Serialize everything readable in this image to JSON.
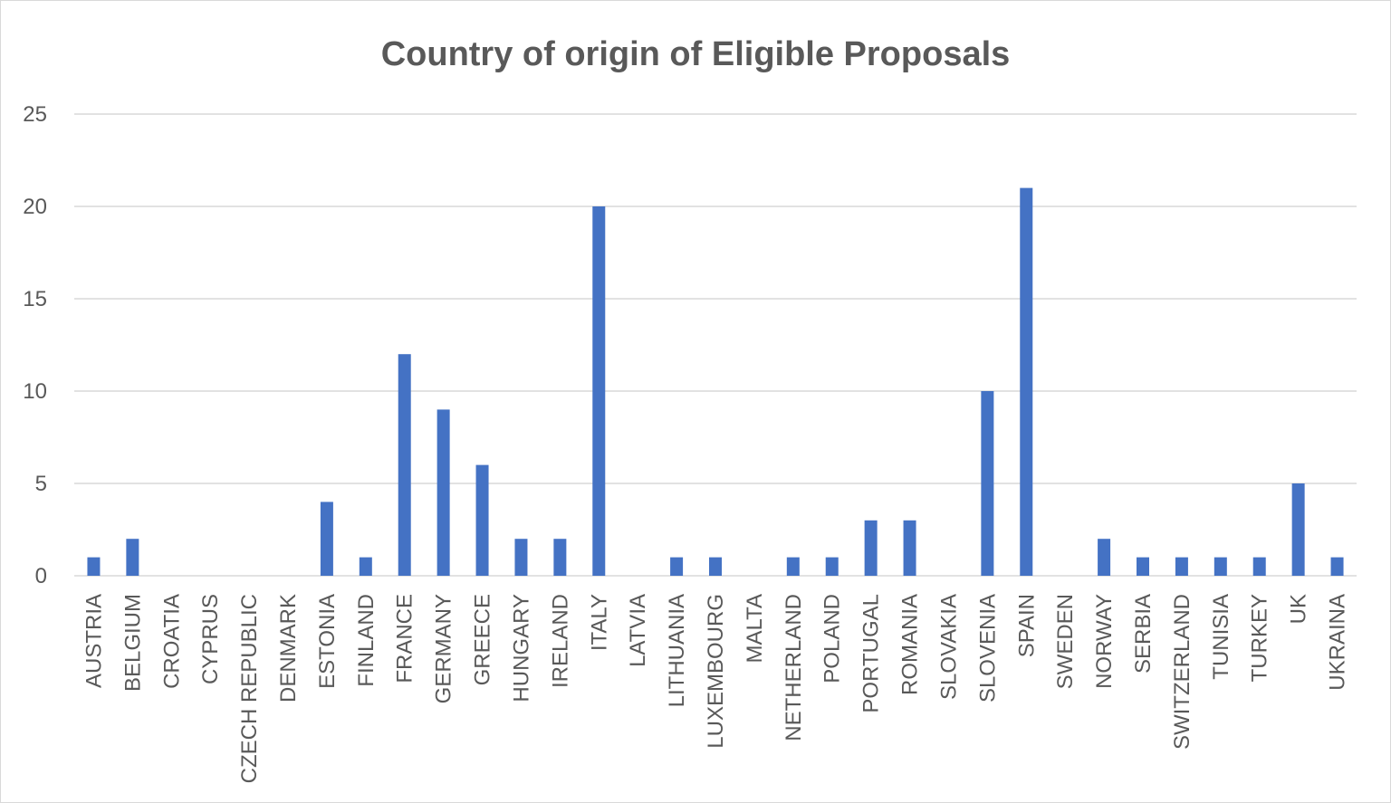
{
  "chart_data": {
    "type": "bar",
    "title": "Country of origin of Eligible Proposals",
    "xlabel": "",
    "ylabel": "",
    "ylim": [
      0,
      25
    ],
    "yticks": [
      0,
      5,
      10,
      15,
      20,
      25
    ],
    "grid": true,
    "legend": "none",
    "bar_color": "#4472c4",
    "categories": [
      "AUSTRIA",
      "BELGIUM",
      "CROATIA",
      "CYPRUS",
      "CZECH REPUBLIC",
      "DENMARK",
      "ESTONIA",
      "FINLAND",
      "FRANCE",
      "GERMANY",
      "GREECE",
      "HUNGARY",
      "IRELAND",
      "ITALY",
      "LATVIA",
      "LITHUANIA",
      "LUXEMBOURG",
      "MALTA",
      "NETHERLAND",
      "POLAND",
      "PORTUGAL",
      "ROMANIA",
      "SLOVAKIA",
      "SLOVENIA",
      "SPAIN",
      "SWEDEN",
      "NORWAY",
      "SERBIA",
      "SWITZERLAND",
      "TUNISIA",
      "TURKEY",
      "UK",
      "UKRAINA"
    ],
    "values": [
      1,
      2,
      0,
      0,
      0,
      0,
      4,
      1,
      12,
      9,
      6,
      2,
      2,
      20,
      0,
      1,
      1,
      0,
      1,
      1,
      3,
      3,
      0,
      10,
      21,
      0,
      2,
      1,
      1,
      1,
      1,
      5,
      1
    ]
  }
}
